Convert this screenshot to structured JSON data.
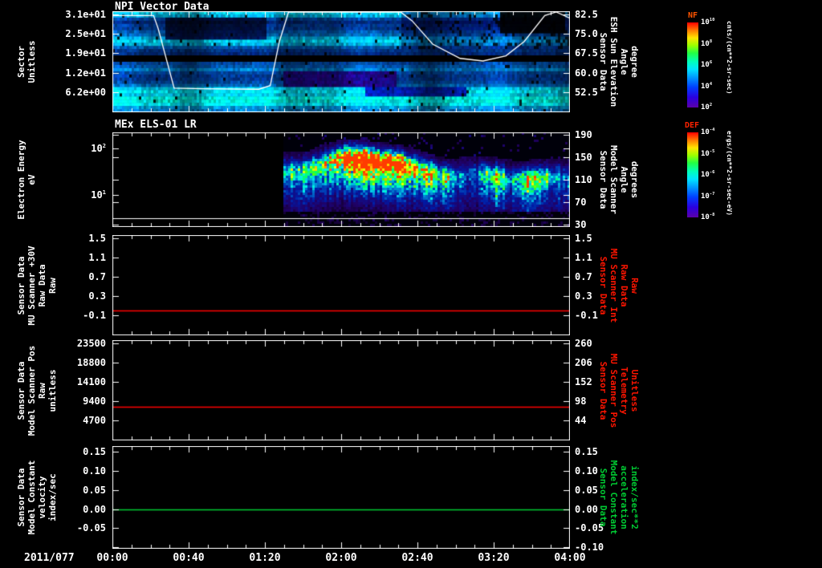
{
  "x_axis": {
    "date": "2011/077",
    "tick_labels": [
      "00:00",
      "00:40",
      "01:20",
      "02:00",
      "02:40",
      "03:20",
      "04:00"
    ]
  },
  "colorbars": [
    {
      "name": "NF",
      "name_color": "#ff5500",
      "unit": "cnts/(cm**2-sr-sec)",
      "ticks": [
        {
          "label": "10^10",
          "f": 0
        },
        {
          "label": "10^8",
          "f": 0.25
        },
        {
          "label": "10^6",
          "f": 0.5
        },
        {
          "label": "10^4",
          "f": 0.75
        },
        {
          "label": "10^2",
          "f": 1
        }
      ]
    },
    {
      "name": "DEF",
      "name_color": "#ff2200",
      "unit": "ergs/(cm**2-sr-sec-eV)",
      "ticks": [
        {
          "label": "10^-4",
          "f": 0
        },
        {
          "label": "10^-5",
          "f": 0.25
        },
        {
          "label": "10^-6",
          "f": 0.5
        },
        {
          "label": "10^-7",
          "f": 0.75
        },
        {
          "label": "10^-8",
          "f": 1
        }
      ]
    }
  ],
  "chart_data": [
    {
      "type": "spectrogram",
      "texture": "npi",
      "title": "NPI Vector Data",
      "description": "NPI ion/ENA sector spectrogram, mostly blue-cyan banded counts with black sector band mid-panel, purple patches center, dark blob top-right; white overlay line is ESH Sun Elevation Angle",
      "y_left": {
        "label_lines": [
          "Sector",
          "Unitless"
        ],
        "ticks": [
          {
            "label": "3.1e+01",
            "f": 0.03
          },
          {
            "label": "2.5e+01",
            "f": 0.2225
          },
          {
            "label": "1.9e+01",
            "f": 0.415
          },
          {
            "label": "1.2e+01",
            "f": 0.6075
          },
          {
            "label": "6.2e+00",
            "f": 0.8
          }
        ]
      },
      "y_right": {
        "label_lines": [
          "Sensor Data",
          "ESH Sun Elevation",
          "Angle",
          "degree"
        ],
        "label_color": "#ffffff",
        "ticks": [
          {
            "label": "82.5",
            "f": 0.03
          },
          {
            "label": "75.0",
            "f": 0.2225
          },
          {
            "label": "67.5",
            "f": 0.415
          },
          {
            "label": "60.0",
            "f": 0.6075
          },
          {
            "label": "52.5",
            "f": 0.8
          }
        ]
      },
      "overlay_line": {
        "color": "#ffffff",
        "units": "degrees",
        "scale": {
          "deg": [
            82.5,
            52.5
          ],
          "f": [
            0.03,
            0.8
          ]
        },
        "points": [
          [
            0,
            82
          ],
          [
            0.09,
            82
          ],
          [
            0.1,
            77
          ],
          [
            0.135,
            54
          ],
          [
            0.2,
            53.8
          ],
          [
            0.32,
            53.6
          ],
          [
            0.345,
            55
          ],
          [
            0.365,
            72
          ],
          [
            0.385,
            83.5
          ],
          [
            0.63,
            83.5
          ],
          [
            0.655,
            80
          ],
          [
            0.7,
            71
          ],
          [
            0.76,
            65.5
          ],
          [
            0.81,
            64.5
          ],
          [
            0.86,
            66.5
          ],
          [
            0.9,
            72
          ],
          [
            0.945,
            82
          ],
          [
            0.97,
            84
          ],
          [
            1,
            81
          ]
        ]
      }
    },
    {
      "type": "spectrogram",
      "texture": "els",
      "title": "MEx ELS-01 LR",
      "description": "Electron energy-time spectrogram; no data before ~01:29, then bright green-yellow flux band with red cores near 02:10-02:30 around 30-100 eV, undulating band with gaps near 03:10 and 03:30, blobs near 03:20 and 03:45",
      "data_start_frac": 0.373,
      "baseline_line": {
        "color": "#ffffff",
        "f": 0.91
      },
      "y_left": {
        "label_lines": [
          "Electron Energy",
          "eV"
        ],
        "ticks": [
          {
            "label": "10^2",
            "f": 0.17
          },
          {
            "label": "10^1",
            "f": 0.66
          }
        ]
      },
      "y_right": {
        "label_lines": [
          "Sensor Data",
          "Model Scanner",
          "Angle",
          "degrees"
        ],
        "label_color": "#ffffff",
        "ticks": [
          {
            "label": "190",
            "f": 0.025
          },
          {
            "label": "150",
            "f": 0.263
          },
          {
            "label": "110",
            "f": 0.5
          },
          {
            "label": "70",
            "f": 0.737
          },
          {
            "label": "30",
            "f": 0.975
          }
        ]
      }
    },
    {
      "type": "line",
      "y_left": {
        "label_lines": [
          "Sensor Data",
          "MU Scanner +30V",
          "Raw Data",
          "Raw"
        ],
        "ticks": [
          {
            "label": "1.5",
            "f": 0.032
          },
          {
            "label": "1.1",
            "f": 0.224
          },
          {
            "label": "0.7",
            "f": 0.416
          },
          {
            "label": "0.3",
            "f": 0.608
          },
          {
            "label": "-0.1",
            "f": 0.8
          }
        ]
      },
      "y_right": {
        "label_lines": [
          "Sensor Data",
          "MU Scanner Int",
          "Raw Data",
          "Raw"
        ],
        "label_color": "#ff1500",
        "ticks": [
          {
            "label": "1.5",
            "f": 0.032
          },
          {
            "label": "1.1",
            "f": 0.224
          },
          {
            "label": "0.7",
            "f": 0.416
          },
          {
            "label": "0.3",
            "f": 0.608
          },
          {
            "label": "-0.1",
            "f": 0.8
          }
        ]
      },
      "series": [
        {
          "name": "MU Scanner +30V Raw",
          "color": "#ff0000",
          "constant_value": 0.0,
          "f": 0.752
        }
      ]
    },
    {
      "type": "line",
      "y_left": {
        "label_lines": [
          "Sensor Data",
          "Model Scanner Pos",
          "Raw",
          "unitless"
        ],
        "ticks": [
          {
            "label": "23500",
            "f": 0.032
          },
          {
            "label": "18800",
            "f": 0.224
          },
          {
            "label": "14100",
            "f": 0.416
          },
          {
            "label": "9400",
            "f": 0.608
          },
          {
            "label": "4700",
            "f": 0.8
          }
        ]
      },
      "y_right": {
        "label_lines": [
          "Sensor Data",
          "MU Scanner Pos",
          "Telemetry",
          "Unitless"
        ],
        "label_color": "#ff1500",
        "ticks": [
          {
            "label": "260",
            "f": 0.032
          },
          {
            "label": "206",
            "f": 0.224
          },
          {
            "label": "152",
            "f": 0.416
          },
          {
            "label": "98",
            "f": 0.608
          },
          {
            "label": "44",
            "f": 0.8
          }
        ]
      },
      "series": [
        {
          "name": "Model Scanner Pos Raw",
          "color": "#ff0000",
          "constant_value": 8000,
          "f": 0.664
        }
      ]
    },
    {
      "type": "line",
      "y_left": {
        "label_lines": [
          "Sensor Data",
          "Model Constant",
          "velocity",
          "index/sec"
        ],
        "ticks": [
          {
            "label": "0.15",
            "f": 0.055
          },
          {
            "label": "0.10",
            "f": 0.242
          },
          {
            "label": "0.05",
            "f": 0.43
          },
          {
            "label": "0.00",
            "f": 0.617
          },
          {
            "label": "-0.05",
            "f": 0.797
          }
        ]
      },
      "y_right": {
        "label_lines": [
          "Sensor Data",
          "Model Constant",
          "acceleration",
          "index/sec**2"
        ],
        "label_color": "#00cc33",
        "ticks": [
          {
            "label": "0.15",
            "f": 0.055
          },
          {
            "label": "0.10",
            "f": 0.242
          },
          {
            "label": "0.05",
            "f": 0.43
          },
          {
            "label": "0.00",
            "f": 0.617
          },
          {
            "label": "-0.05",
            "f": 0.797
          },
          {
            "label": "-0.10",
            "f": 0.984
          }
        ]
      },
      "series": [
        {
          "name": "Model Constant velocity",
          "color": "#00cc33",
          "constant_value": 0.0,
          "f": 0.617
        }
      ]
    }
  ]
}
